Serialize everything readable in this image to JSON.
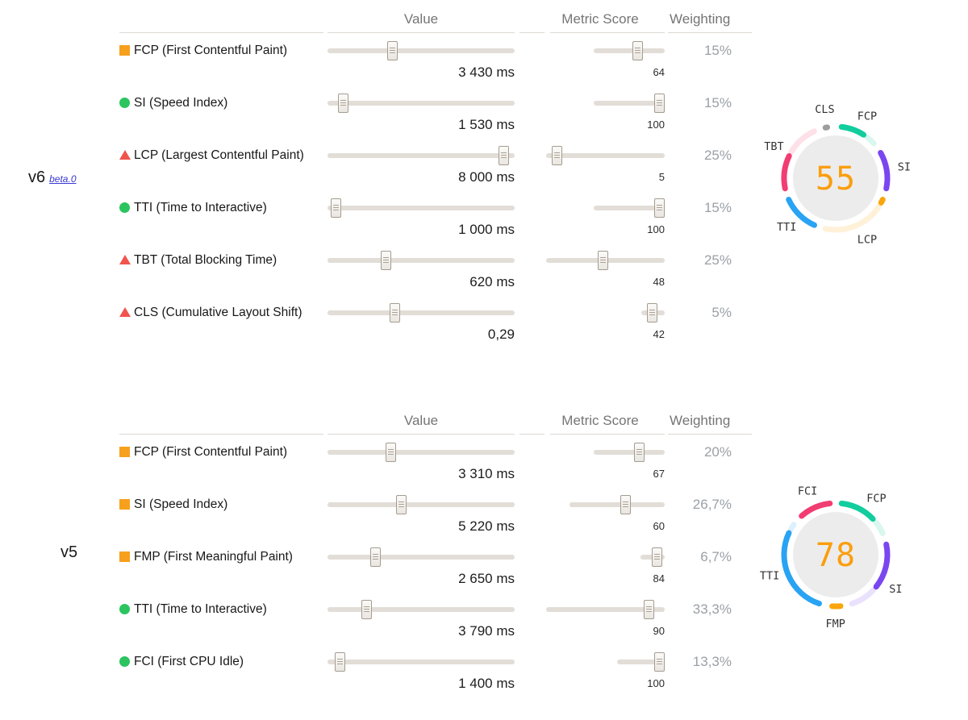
{
  "header": {
    "value": "Value",
    "metric_score": "Metric Score",
    "weighting": "Weighting"
  },
  "gauge": {
    "score_color": "#fa9e0e",
    "circle_bg": "#ececec",
    "palette": [
      "#12cd9d",
      "#7a46f0",
      "#f9a50c",
      "#29a3f3",
      "#f23d72",
      "#9e9e9e"
    ],
    "faint_opacity": 0.16
  },
  "status_colors": {
    "average": "#f7a01d",
    "fast": "#2bc45f",
    "slow": "#f0544c"
  },
  "versions": [
    {
      "name": "v6",
      "release_link": "beta.0",
      "score": "55",
      "metrics": [
        {
          "id": "FCP",
          "label": "FCP (First Contentful Paint)",
          "status": "average",
          "value": "3 430 ms",
          "value_pct": 34,
          "score": 64,
          "weight_label": "15%",
          "weight": 15
        },
        {
          "id": "SI",
          "label": "SI (Speed Index)",
          "status": "fast",
          "value": "1 530 ms",
          "value_pct": 6,
          "score": 100,
          "weight_label": "15%",
          "weight": 15
        },
        {
          "id": "LCP",
          "label": "LCP (Largest Contentful Paint)",
          "status": "slow",
          "value": "8 000 ms",
          "value_pct": 97,
          "score": 5,
          "weight_label": "25%",
          "weight": 25
        },
        {
          "id": "TTI",
          "label": "TTI (Time to Interactive)",
          "status": "fast",
          "value": "1 000 ms",
          "value_pct": 2,
          "score": 100,
          "weight_label": "15%",
          "weight": 15
        },
        {
          "id": "TBT",
          "label": "TBT (Total Blocking Time)",
          "status": "slow",
          "value": "620 ms",
          "value_pct": 30,
          "score": 48,
          "weight_label": "25%",
          "weight": 25
        },
        {
          "id": "CLS",
          "label": "CLS (Cumulative Layout Shift)",
          "status": "slow",
          "value": "0,29",
          "value_pct": 35,
          "score": 42,
          "weight_label": "5%",
          "weight": 5
        }
      ]
    },
    {
      "name": "v5",
      "release_link": "",
      "score": "78",
      "metrics": [
        {
          "id": "FCP",
          "label": "FCP (First Contentful Paint)",
          "status": "average",
          "value": "3 310 ms",
          "value_pct": 33,
          "score": 67,
          "weight_label": "20%",
          "weight": 20
        },
        {
          "id": "SI",
          "label": "SI (Speed Index)",
          "status": "average",
          "value": "5 220 ms",
          "value_pct": 39,
          "score": 60,
          "weight_label": "26,7%",
          "weight": 26.7
        },
        {
          "id": "FMP",
          "label": "FMP (First Meaningful Paint)",
          "status": "average",
          "value": "2 650 ms",
          "value_pct": 24,
          "score": 84,
          "weight_label": "6,7%",
          "weight": 6.7
        },
        {
          "id": "TTI",
          "label": "TTI (Time to Interactive)",
          "status": "fast",
          "value": "3 790 ms",
          "value_pct": 19,
          "score": 90,
          "weight_label": "33,3%",
          "weight": 33.3
        },
        {
          "id": "FCI",
          "label": "FCI (First CPU Idle)",
          "status": "fast",
          "value": "1 400 ms",
          "value_pct": 4,
          "score": 100,
          "weight_label": "13,3%",
          "weight": 13.3
        }
      ]
    }
  ]
}
